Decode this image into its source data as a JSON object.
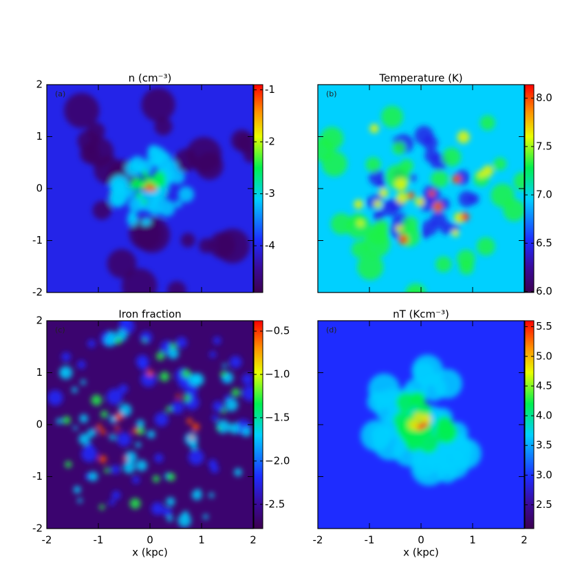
{
  "chart_data": [
    {
      "type": "map",
      "title": "n (cm⁻³)",
      "panel_label": "(a)",
      "xlim": [
        -2,
        2
      ],
      "ylim": [
        -2,
        2
      ],
      "xticks": [
        -2,
        -1,
        0,
        1,
        2
      ],
      "yticks": [
        -2,
        -1,
        0,
        1,
        2
      ],
      "x_tick_labels": false,
      "y_tick_labels": true,
      "clim": [
        -4.9,
        -0.9
      ],
      "cticks": [
        -4,
        -3,
        -2,
        -1
      ]
    },
    {
      "type": "map",
      "title": "Temperature (K)",
      "panel_label": "(b)",
      "xlim": [
        -2,
        2
      ],
      "ylim": [
        -2,
        2
      ],
      "xticks": [
        -2,
        -1,
        0,
        1,
        2
      ],
      "yticks": [
        -2,
        -1,
        0,
        1,
        2
      ],
      "x_tick_labels": false,
      "y_tick_labels": false,
      "clim": [
        5.99,
        8.14
      ],
      "cticks": [
        {
          "value": 6.0,
          "label": "6.0"
        },
        6.5,
        {
          "value": 7.0,
          "label": "7.0"
        },
        7.5,
        {
          "value": 8.0,
          "label": "8.0"
        }
      ]
    },
    {
      "type": "map",
      "title": "Iron fraction",
      "panel_label": "(c)",
      "xlim": [
        -2,
        2
      ],
      "ylim": [
        -2,
        2
      ],
      "xticks": [
        -2,
        -1,
        0,
        1,
        2
      ],
      "yticks": [
        -2,
        -1,
        0,
        1,
        2
      ],
      "x_tick_labels": true,
      "y_tick_labels": true,
      "xlabel": "x (kpc)",
      "clim": [
        -2.78,
        -0.38
      ],
      "cticks": [
        -2.5,
        {
          "value": -2.0,
          "label": "−2.0"
        },
        {
          "value": -1.5,
          "label": "−1.5"
        },
        {
          "value": -1.0,
          "label": "−1.0"
        },
        {
          "value": -0.5,
          "label": "−0.5"
        }
      ]
    },
    {
      "type": "map",
      "title": "nT (Kcm⁻³)",
      "panel_label": "(d)",
      "xlim": [
        -2,
        2
      ],
      "ylim": [
        -2,
        2
      ],
      "xticks": [
        -2,
        -1,
        0,
        1,
        2
      ],
      "yticks": [
        -2,
        -1,
        0,
        1,
        2
      ],
      "x_tick_labels": true,
      "y_tick_labels": false,
      "xlabel": "x (kpc)",
      "clim": [
        2.1,
        5.6
      ],
      "cticks": [
        2.5,
        {
          "value": 3.0,
          "label": "3.0"
        },
        3.5,
        {
          "value": 4.0,
          "label": "4.0"
        },
        4.5,
        {
          "value": 5.0,
          "label": "5.0"
        },
        5.5
      ]
    }
  ]
}
